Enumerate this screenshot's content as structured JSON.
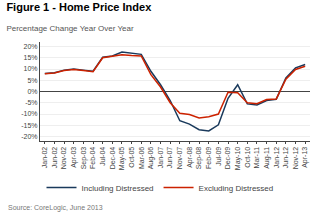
{
  "chart_data": {
    "type": "line",
    "title": "Figure 1 - Home Price Index",
    "subtitle": "Percentage Change Year Over Year",
    "annotations": [
      "Source: CoreLogic, June 2013"
    ],
    "categories": [
      "Jan-02",
      "Jun-02",
      "Nov-02",
      "Apr-03",
      "Sep-03",
      "Feb-04",
      "Jul-04",
      "Dec-04",
      "May-05",
      "Oct-05",
      "Mar-06",
      "Aug-06",
      "Jan-07",
      "Jun-07",
      "Nov-07",
      "Apr-08",
      "Sep-08",
      "Feb-09",
      "Jul-09",
      "Dec-09",
      "May-10",
      "Oct-10",
      "Mar-11",
      "Aug-11",
      "Jan-12",
      "Jun-12",
      "Nov-12",
      "Apr-13"
    ],
    "series": [
      {
        "name": "Including Distressed",
        "color": "#1a3a5c",
        "values": [
          0.08,
          0.083,
          0.095,
          0.1,
          0.095,
          0.09,
          0.152,
          0.158,
          0.175,
          0.17,
          0.165,
          0.09,
          0.03,
          -0.04,
          -0.13,
          -0.145,
          -0.17,
          -0.175,
          -0.148,
          -0.03,
          0.03,
          -0.055,
          -0.06,
          -0.04,
          -0.035,
          0.06,
          0.105,
          0.12
        ]
      },
      {
        "name": "Excluding Distressed",
        "color": "#cc2200",
        "values": [
          0.079,
          0.082,
          0.093,
          0.098,
          0.093,
          0.088,
          0.15,
          0.158,
          0.163,
          0.16,
          0.158,
          0.075,
          0.02,
          -0.05,
          -0.097,
          -0.102,
          -0.118,
          -0.112,
          -0.1,
          -0.003,
          -0.005,
          -0.05,
          -0.054,
          -0.036,
          -0.033,
          0.055,
          0.098,
          0.112
        ]
      }
    ],
    "ylim": [
      -0.22,
      0.22
    ],
    "yticks": [
      {
        "value": -0.2,
        "label": "-20%"
      },
      {
        "value": -0.15,
        "label": "-15%"
      },
      {
        "value": -0.1,
        "label": "-10%"
      },
      {
        "value": -0.05,
        "label": "-5%"
      },
      {
        "value": 0.0,
        "label": "0%"
      },
      {
        "value": 0.05,
        "label": "5%"
      },
      {
        "value": 0.1,
        "label": "10%"
      },
      {
        "value": 0.15,
        "label": "15%"
      },
      {
        "value": 0.2,
        "label": "20%"
      }
    ],
    "grid": true,
    "legend": "bottom"
  }
}
